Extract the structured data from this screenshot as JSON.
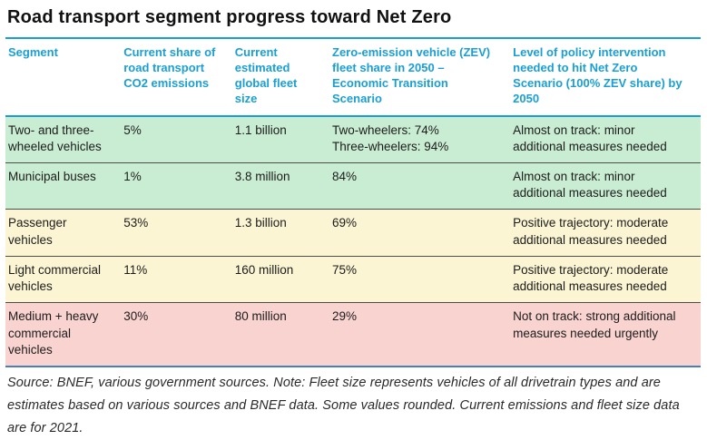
{
  "title": "Road transport segment progress toward Net Zero",
  "colors": {
    "accent_cyan": "#1a9fd3",
    "bottom_rule_blue": "#4a7fb5",
    "row_green": "#c9edd2",
    "row_yellow": "#fbf5d3",
    "row_red": "#f9d3d0",
    "separator": "#4d4d4d"
  },
  "table": {
    "columns": [
      "Segment",
      "Current share of road transport CO2 emissions",
      "Current estimated global fleet size",
      "Zero-emission vehicle (ZEV) fleet share in 2050 – Economic Transition Scenario",
      "Level of policy intervention needed to hit Net Zero Scenario (100% ZEV share) by 2050"
    ],
    "rows": [
      {
        "segment": "Two- and three-wheeled vehicles",
        "share": "5%",
        "fleet": "1.1 billion",
        "zev": "Two-wheelers: 74%\nThree-wheelers: 94%",
        "policy": "Almost on track: minor additional measures needed",
        "status": "green"
      },
      {
        "segment": "Municipal buses",
        "share": "1%",
        "fleet": "3.8 million",
        "zev": "84%",
        "policy": "Almost on track: minor additional measures needed",
        "status": "green"
      },
      {
        "segment": "Passenger vehicles",
        "share": "53%",
        "fleet": "1.3 billion",
        "zev": "69%",
        "policy": "Positive trajectory: moderate additional measures needed",
        "status": "yellow"
      },
      {
        "segment": "Light commercial vehicles",
        "share": "11%",
        "fleet": "160 million",
        "zev": "75%",
        "policy": "Positive trajectory: moderate additional measures needed",
        "status": "yellow"
      },
      {
        "segment": "Medium + heavy commercial vehicles",
        "share": "30%",
        "fleet": "80 million",
        "zev": "29%",
        "policy": "Not on track: strong additional measures needed urgently",
        "status": "red"
      }
    ]
  },
  "footnote": "Source: BNEF, various government sources. Note: Fleet size represents vehicles of all drivetrain types and are estimates based on various sources and BNEF data. Some values rounded. Current emissions and fleet size data are for 2021."
}
